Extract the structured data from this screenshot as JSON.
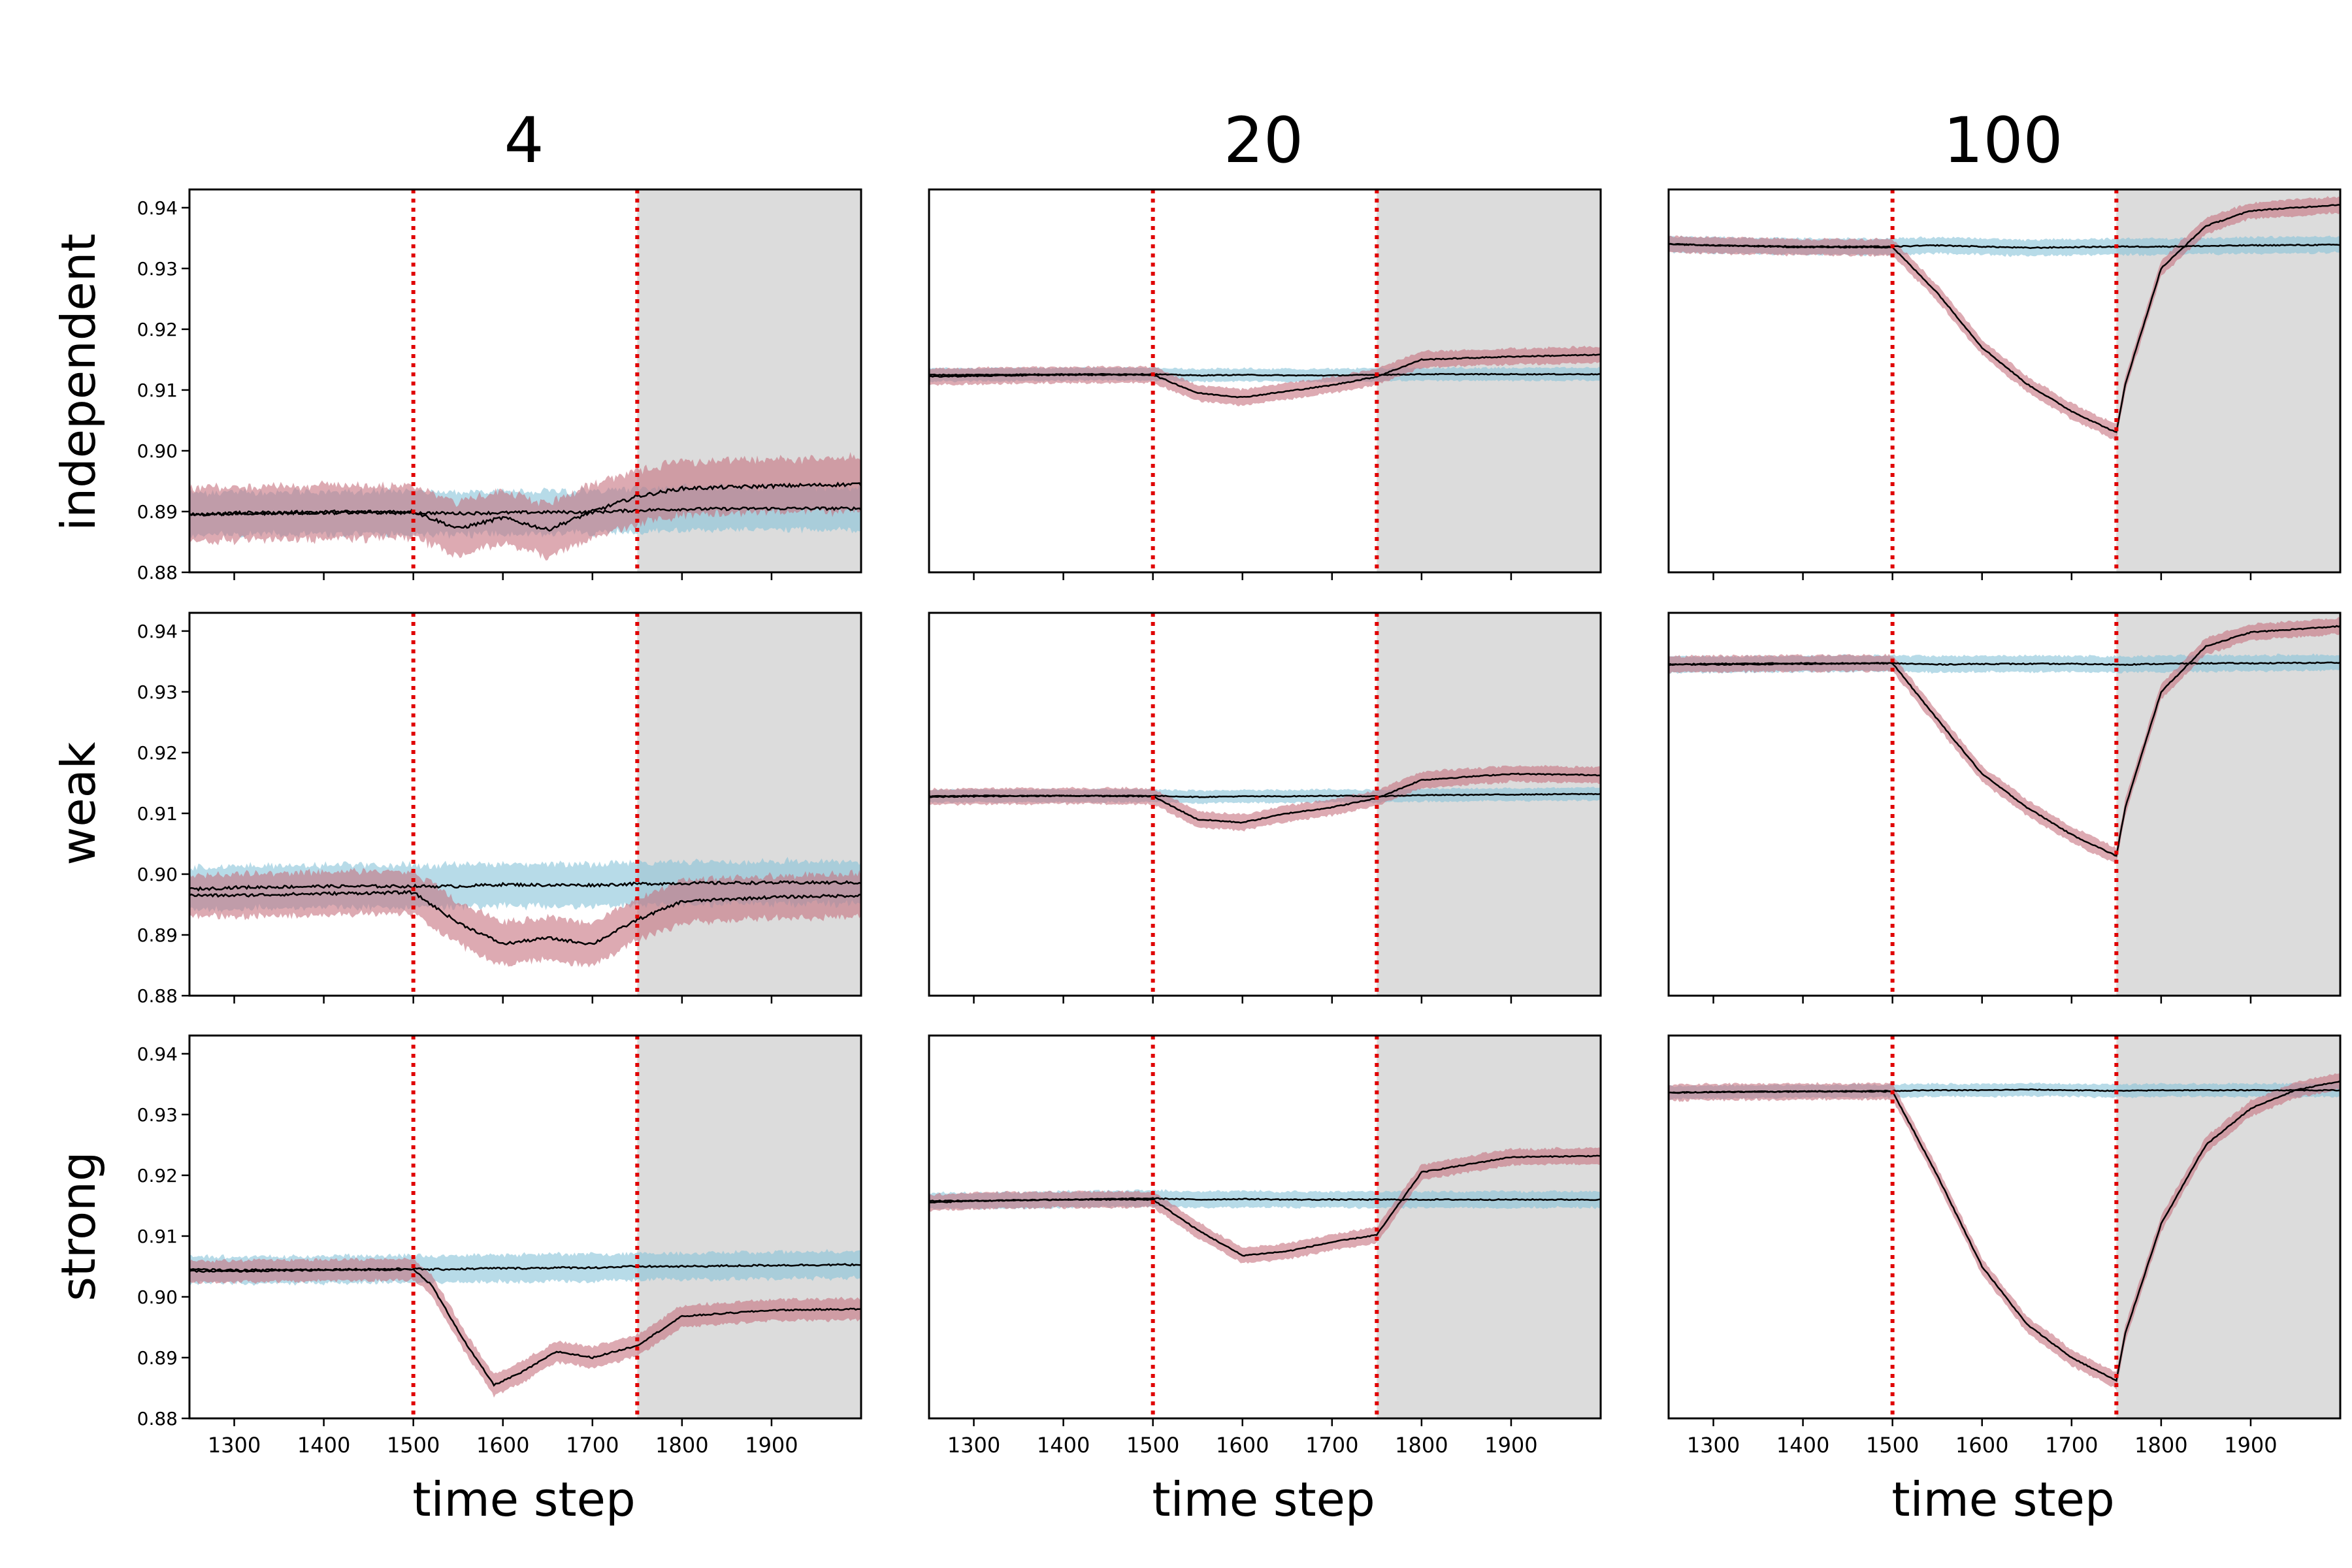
{
  "figure": {
    "col_titles": [
      "4",
      "20",
      "100"
    ],
    "row_labels": [
      "independent",
      "weak",
      "strong"
    ],
    "xlabel": "time step",
    "xticks": [
      1300,
      1400,
      1500,
      1600,
      1700,
      1800,
      1900
    ],
    "yticks": [
      0.88,
      0.89,
      0.9,
      0.91,
      0.92,
      0.93,
      0.94
    ],
    "ytick_labels": [
      "0.88",
      "0.89",
      "0.90",
      "0.91",
      "0.92",
      "0.93",
      "0.94"
    ],
    "xlim": [
      1250,
      2000
    ],
    "ylim_shared": [
      0.88,
      0.943
    ],
    "vlines": [
      1500,
      1750
    ],
    "shaded_region": [
      1750,
      2000
    ],
    "colors": {
      "baseline_band": "#87c3d8",
      "perturbed_band": "#c7717f",
      "mean_line": "#000000",
      "vline": "#e00000",
      "shade": "#dcdcdc"
    }
  },
  "chart_data": [
    {
      "type": "line",
      "row": "independent",
      "col": "4",
      "ylim": [
        0.88,
        0.943
      ],
      "x": [
        1250,
        1300,
        1400,
        1500,
        1550,
        1600,
        1650,
        1700,
        1750,
        1800,
        1900,
        2000
      ],
      "series": [
        {
          "values": [
            0.8895,
            0.8897,
            0.8898,
            0.8898,
            0.8897,
            0.8898,
            0.8899,
            0.8899,
            0.8902,
            0.8904,
            0.8905,
            0.8905
          ],
          "band": 0.004,
          "band_color": "#87c3d8"
        },
        {
          "values": [
            0.8895,
            0.8897,
            0.8899,
            0.89,
            0.8872,
            0.889,
            0.887,
            0.89,
            0.8925,
            0.8938,
            0.8942,
            0.8945
          ],
          "band": 0.005,
          "band_color": "#c7717f"
        }
      ]
    },
    {
      "type": "line",
      "row": "independent",
      "col": "20",
      "ylim": [
        0.88,
        0.943
      ],
      "x": [
        1250,
        1300,
        1400,
        1500,
        1550,
        1600,
        1650,
        1700,
        1750,
        1800,
        1900,
        2000
      ],
      "series": [
        {
          "values": [
            0.9125,
            0.9125,
            0.9126,
            0.9126,
            0.9124,
            0.9125,
            0.9124,
            0.9124,
            0.9125,
            0.9126,
            0.9126,
            0.9126
          ],
          "band": 0.0012,
          "band_color": "#87c3d8"
        },
        {
          "values": [
            0.9122,
            0.9123,
            0.9125,
            0.9125,
            0.9095,
            0.9088,
            0.9098,
            0.9108,
            0.9122,
            0.915,
            0.9155,
            0.9158
          ],
          "band": 0.0015,
          "band_color": "#c7717f"
        }
      ]
    },
    {
      "type": "line",
      "row": "independent",
      "col": "100",
      "ylim": [
        0.88,
        0.943
      ],
      "x": [
        1250,
        1300,
        1400,
        1500,
        1550,
        1600,
        1650,
        1700,
        1750,
        1760,
        1800,
        1850,
        1900,
        2000
      ],
      "series": [
        {
          "values": [
            0.934,
            0.9338,
            0.9336,
            0.9336,
            0.9338,
            0.9336,
            0.9334,
            0.9335,
            0.9336,
            0.9336,
            0.9336,
            0.9337,
            0.9338,
            0.9339
          ],
          "band": 0.0015,
          "band_color": "#87c3d8"
        },
        {
          "values": [
            0.934,
            0.9338,
            0.9335,
            0.9335,
            0.926,
            0.917,
            0.911,
            0.9065,
            0.903,
            0.911,
            0.93,
            0.937,
            0.9395,
            0.9405
          ],
          "band": 0.0015,
          "band_color": "#c7717f"
        }
      ]
    },
    {
      "type": "line",
      "row": "weak",
      "col": "4",
      "ylim": [
        0.88,
        0.943
      ],
      "x": [
        1250,
        1300,
        1400,
        1500,
        1550,
        1600,
        1650,
        1700,
        1750,
        1800,
        1900,
        2000
      ],
      "series": [
        {
          "values": [
            0.8975,
            0.8978,
            0.898,
            0.898,
            0.898,
            0.8983,
            0.8982,
            0.8982,
            0.8984,
            0.8985,
            0.8986,
            0.8986
          ],
          "band": 0.004,
          "band_color": "#87c3d8"
        },
        {
          "values": [
            0.8965,
            0.8965,
            0.8968,
            0.897,
            0.892,
            0.8885,
            0.8895,
            0.8885,
            0.8925,
            0.8955,
            0.8962,
            0.8965
          ],
          "band": 0.004,
          "band_color": "#c7717f"
        }
      ]
    },
    {
      "type": "line",
      "row": "weak",
      "col": "20",
      "ylim": [
        0.88,
        0.943
      ],
      "x": [
        1250,
        1300,
        1400,
        1500,
        1550,
        1600,
        1650,
        1700,
        1750,
        1800,
        1900,
        2000
      ],
      "series": [
        {
          "values": [
            0.9128,
            0.9129,
            0.9129,
            0.9129,
            0.9127,
            0.9128,
            0.9128,
            0.9129,
            0.9128,
            0.913,
            0.9131,
            0.9132
          ],
          "band": 0.0012,
          "band_color": "#87c3d8"
        },
        {
          "values": [
            0.9127,
            0.9128,
            0.9129,
            0.9128,
            0.909,
            0.9085,
            0.91,
            0.911,
            0.9125,
            0.9155,
            0.9165,
            0.9163
          ],
          "band": 0.0015,
          "band_color": "#c7717f"
        }
      ]
    },
    {
      "type": "line",
      "row": "weak",
      "col": "100",
      "ylim": [
        0.88,
        0.943
      ],
      "x": [
        1250,
        1300,
        1400,
        1500,
        1550,
        1600,
        1650,
        1700,
        1750,
        1760,
        1800,
        1850,
        1900,
        2000
      ],
      "series": [
        {
          "values": [
            0.9345,
            0.9345,
            0.9346,
            0.9347,
            0.9345,
            0.9346,
            0.9346,
            0.9346,
            0.9345,
            0.9345,
            0.9346,
            0.9347,
            0.9347,
            0.9348
          ],
          "band": 0.0015,
          "band_color": "#87c3d8"
        },
        {
          "values": [
            0.9345,
            0.9346,
            0.9347,
            0.9347,
            0.9255,
            0.9165,
            0.911,
            0.9065,
            0.903,
            0.911,
            0.93,
            0.9375,
            0.9398,
            0.9408
          ],
          "band": 0.0015,
          "band_color": "#c7717f"
        }
      ]
    },
    {
      "type": "line",
      "row": "strong",
      "col": "4",
      "ylim": [
        0.88,
        0.943
      ],
      "x": [
        1250,
        1300,
        1400,
        1500,
        1520,
        1560,
        1590,
        1620,
        1660,
        1700,
        1750,
        1800,
        1900,
        2000
      ],
      "series": [
        {
          "values": [
            0.9045,
            0.9044,
            0.9045,
            0.9046,
            0.9045,
            0.9046,
            0.9047,
            0.9047,
            0.9048,
            0.9048,
            0.905,
            0.905,
            0.9052,
            0.9053
          ],
          "band": 0.0025,
          "band_color": "#87c3d8"
        },
        {
          "values": [
            0.9042,
            0.9042,
            0.9044,
            0.9045,
            0.902,
            0.892,
            0.8855,
            0.8875,
            0.891,
            0.89,
            0.892,
            0.8968,
            0.8978,
            0.898
          ],
          "band": 0.002,
          "band_color": "#c7717f"
        }
      ]
    },
    {
      "type": "line",
      "row": "strong",
      "col": "20",
      "ylim": [
        0.88,
        0.943
      ],
      "x": [
        1250,
        1300,
        1400,
        1500,
        1550,
        1600,
        1650,
        1700,
        1750,
        1800,
        1900,
        2000
      ],
      "series": [
        {
          "values": [
            0.9158,
            0.9158,
            0.916,
            0.9162,
            0.916,
            0.9161,
            0.916,
            0.916,
            0.916,
            0.916,
            0.916,
            0.916
          ],
          "band": 0.0015,
          "band_color": "#87c3d8"
        },
        {
          "values": [
            0.9155,
            0.9158,
            0.916,
            0.916,
            0.911,
            0.9068,
            0.9075,
            0.909,
            0.9102,
            0.9205,
            0.923,
            0.9232
          ],
          "band": 0.0015,
          "band_color": "#c7717f"
        }
      ]
    },
    {
      "type": "line",
      "row": "strong",
      "col": "100",
      "ylim": [
        0.88,
        0.943
      ],
      "x": [
        1250,
        1300,
        1400,
        1500,
        1550,
        1600,
        1650,
        1700,
        1750,
        1760,
        1800,
        1850,
        1900,
        1950,
        2000
      ],
      "series": [
        {
          "values": [
            0.9336,
            0.9337,
            0.9338,
            0.9339,
            0.934,
            0.934,
            0.9341,
            0.934,
            0.9339,
            0.9339,
            0.934,
            0.934,
            0.934,
            0.934,
            0.934
          ],
          "band": 0.0012,
          "band_color": "#87c3d8"
        },
        {
          "values": [
            0.9336,
            0.9337,
            0.9338,
            0.9338,
            0.92,
            0.905,
            0.8955,
            0.89,
            0.8862,
            0.894,
            0.912,
            0.925,
            0.931,
            0.934,
            0.9355
          ],
          "band": 0.0015,
          "band_color": "#c7717f"
        }
      ]
    }
  ]
}
